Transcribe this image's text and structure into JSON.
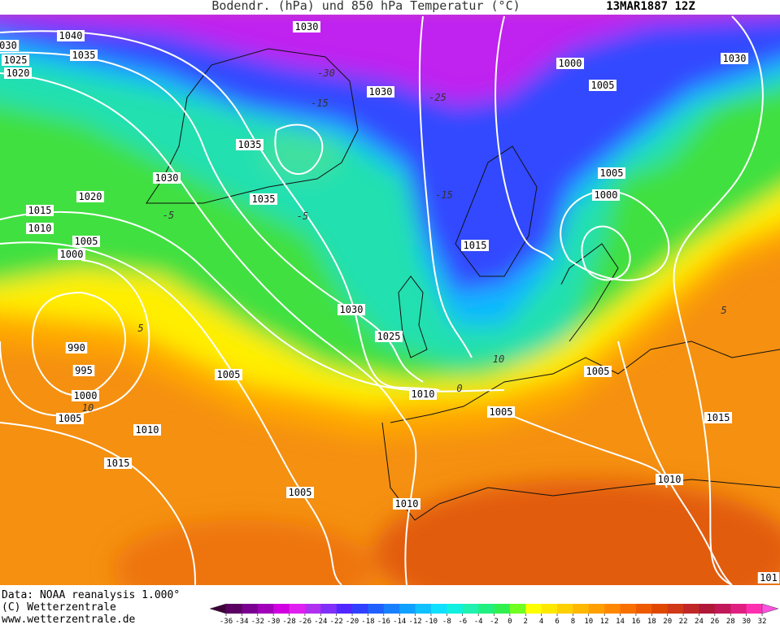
{
  "header": {
    "title": "Bodendr. (hPa) und 850 hPa Temperatur (°C)",
    "date": "13MAR1887 12Z"
  },
  "isobar_labels": [
    "1040",
    "1035",
    "1030",
    "030",
    "1025",
    "1020",
    "1030",
    "1000",
    "1030",
    "1005",
    "1035",
    "1030",
    "1005",
    "1020",
    "1035",
    "1000",
    "1015",
    "1010",
    "1005",
    "1000",
    "1015",
    "1030",
    "1025",
    "990",
    "995",
    "1005",
    "1005",
    "1000",
    "1010",
    "1005",
    "1005",
    "1015",
    "1010",
    "1015",
    "1010",
    "1005",
    "1010",
    "101"
  ],
  "isotherm_labels": [
    "-30",
    "-25",
    "-15",
    "-15",
    "-5",
    "-5",
    "5",
    "10",
    "10",
    "0",
    "5"
  ],
  "footer": {
    "source": "Data: NOAA reanalysis 1.000°",
    "copyright": "(C) Wetterzentrale",
    "url": "www.wetterzentrale.de"
  },
  "colorbar": {
    "ticks": [
      -36,
      -34,
      -32,
      -30,
      -28,
      -26,
      -24,
      -22,
      -20,
      -18,
      -16,
      -14,
      -12,
      -10,
      -8,
      -6,
      -4,
      -2,
      0,
      2,
      4,
      6,
      8,
      10,
      12,
      14,
      16,
      18,
      20,
      22,
      24,
      26,
      28,
      30,
      32
    ],
    "colors": [
      "#3c0038",
      "#5a0060",
      "#7a0090",
      "#a000b8",
      "#d000e0",
      "#e020f0",
      "#b030f0",
      "#8030f8",
      "#5028ff",
      "#3040ff",
      "#2060ff",
      "#1880ff",
      "#10a0ff",
      "#10c0ff",
      "#10e0ff",
      "#10f0e0",
      "#20f0b0",
      "#20f080",
      "#30f050",
      "#70ff20",
      "#ffff00",
      "#ffe800",
      "#ffd000",
      "#ffb800",
      "#ffa000",
      "#ff8800",
      "#f87000",
      "#ee5a00",
      "#e04800",
      "#d03818",
      "#c02828",
      "#b01838",
      "#c01858",
      "#e02080",
      "#ff30b0",
      "#ff50e0"
    ]
  }
}
